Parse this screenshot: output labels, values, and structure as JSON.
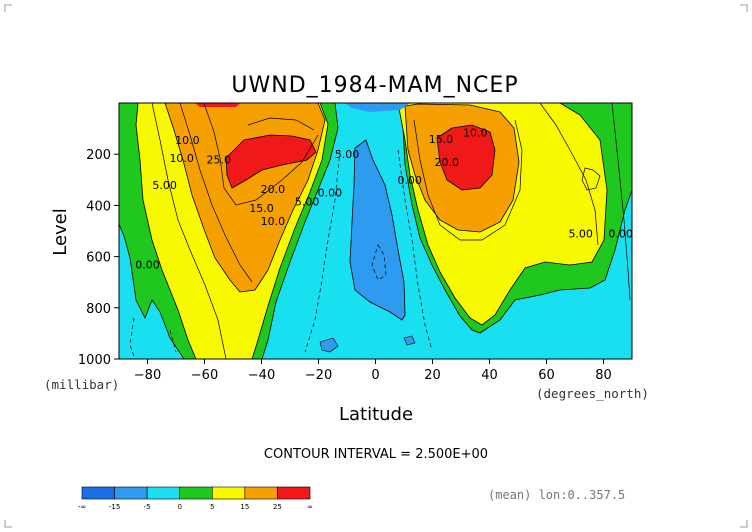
{
  "chart_data": {
    "type": "heatmap",
    "subtype": "filled-contour",
    "title": "UWND_1984-MAM_NCEP",
    "xlabel": "Latitude",
    "ylabel": "Level",
    "x_unit_label": "(degrees_north)",
    "y_unit_label": "(millibar)",
    "xlim": [
      -90,
      90
    ],
    "ylim": [
      1000,
      0
    ],
    "x_ticks": [
      -80,
      -60,
      -40,
      -20,
      0,
      20,
      40,
      60,
      80
    ],
    "x_tick_labels": [
      "−80",
      "−60",
      "−40",
      "−20",
      "0",
      "20",
      "40",
      "60",
      "80"
    ],
    "y_ticks": [
      200,
      400,
      600,
      800,
      1000
    ],
    "y_tick_labels": [
      "200",
      "400",
      "600",
      "800",
      "1000"
    ],
    "contour_interval_text": "CONTOUR INTERVAL = 2.500E+00",
    "subset_note": "(mean) lon:0..357.5",
    "grid": false,
    "legend_position": "bottom-left",
    "colorbar": {
      "bins": [
        {
          "range": "< -15",
          "color": "#1c6ee8"
        },
        {
          "range": "-15 to -5",
          "color": "#2f9bf0"
        },
        {
          "range": "-5 to 0",
          "color": "#18e0f0"
        },
        {
          "range": "0 to 5",
          "color": "#1ec81e"
        },
        {
          "range": "5 to 15",
          "color": "#f8f800"
        },
        {
          "range": "15 to 25",
          "color": "#f5a000"
        },
        {
          "range": "> 25",
          "color": "#f01818"
        }
      ],
      "labels": [
        "-∞",
        "-15",
        "-5",
        "0",
        "5",
        "15",
        "25",
        "∞"
      ]
    },
    "contour_labels": [
      {
        "text": "10.0",
        "lat": -66,
        "lev": 145
      },
      {
        "text": "10.0",
        "lat": -68,
        "lev": 215
      },
      {
        "text": "5.00",
        "lat": -74,
        "lev": 320
      },
      {
        "text": "0.00",
        "lat": -80,
        "lev": 630
      },
      {
        "text": "25.0",
        "lat": -55,
        "lev": 220
      },
      {
        "text": "20.0",
        "lat": -36,
        "lev": 335
      },
      {
        "text": "15.0",
        "lat": -40,
        "lev": 410
      },
      {
        "text": "10.0",
        "lat": -36,
        "lev": 460
      },
      {
        "text": "5.00",
        "lat": -24,
        "lev": 385
      },
      {
        "text": "0.00",
        "lat": -16,
        "lev": 350
      },
      {
        "text": "5.00",
        "lat": -10,
        "lev": 200
      },
      {
        "text": "0.00",
        "lat": 12,
        "lev": 300
      },
      {
        "text": "15.0",
        "lat": 23,
        "lev": 140
      },
      {
        "text": "10.0",
        "lat": 35,
        "lev": 115
      },
      {
        "text": "20.0",
        "lat": 25,
        "lev": 230
      },
      {
        "text": "5.00",
        "lat": 72,
        "lev": 510
      },
      {
        "text": "0.00",
        "lat": 86,
        "lev": 510
      }
    ]
  }
}
